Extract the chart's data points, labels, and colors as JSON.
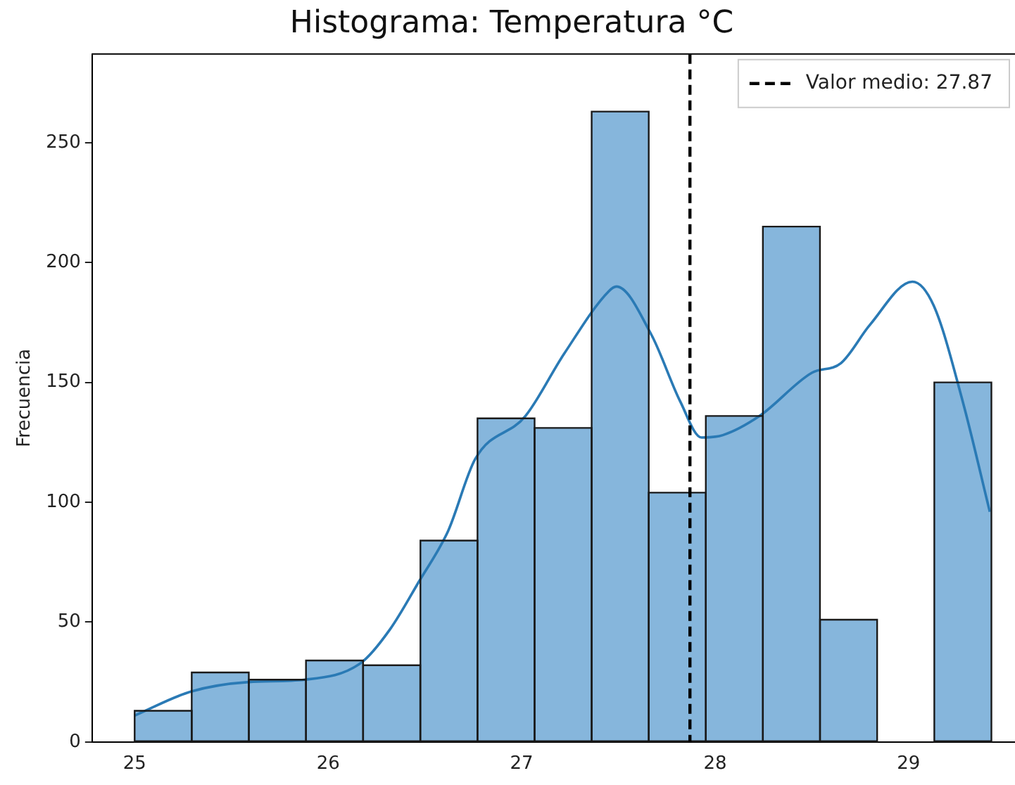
{
  "chart_data": {
    "type": "histogram",
    "title": "Histograma: Temperatura °C",
    "ylabel": "Frecuencia",
    "bins": [
      25.0,
      25.295,
      25.59,
      25.886,
      26.18,
      26.477,
      26.772,
      27.067,
      27.362,
      27.657,
      27.952,
      28.247,
      28.542,
      28.838,
      29.133,
      29.428
    ],
    "values": [
      13,
      29,
      26,
      34,
      32,
      84,
      135,
      131,
      263,
      104,
      136,
      215,
      51,
      null,
      150
    ],
    "color": "#86b6dc",
    "series": [
      {
        "type": "line",
        "color": "#2a7ab5",
        "x": [
          25.0,
          25.29,
          25.59,
          25.88,
          26.17,
          26.32,
          26.47,
          26.62,
          26.76,
          27.02,
          27.22,
          27.45,
          27.49,
          27.67,
          27.82,
          27.93,
          28.04,
          28.23,
          28.5,
          28.65,
          28.8,
          29.02,
          29.13,
          29.28,
          29.42
        ],
        "values": [
          11,
          21,
          25,
          26,
          33,
          47,
          67,
          88,
          118,
          136,
          162,
          188,
          190,
          170,
          142,
          127,
          128,
          136,
          154,
          158,
          174,
          192,
          182,
          142,
          96
        ]
      }
    ],
    "ref_lines": [
      {
        "axis": "x",
        "value": 27.87,
        "label": "Valor medio: 27.87",
        "color": "#000000",
        "line_style": "dashed"
      }
    ],
    "xlim": [
      24.78,
      29.55
    ],
    "xticks": [
      25,
      26,
      27,
      28,
      29
    ],
    "ylim": [
      0,
      287
    ],
    "yticks": [
      0,
      50,
      100,
      150,
      200,
      250
    ],
    "grid": false,
    "legend": "top right"
  }
}
